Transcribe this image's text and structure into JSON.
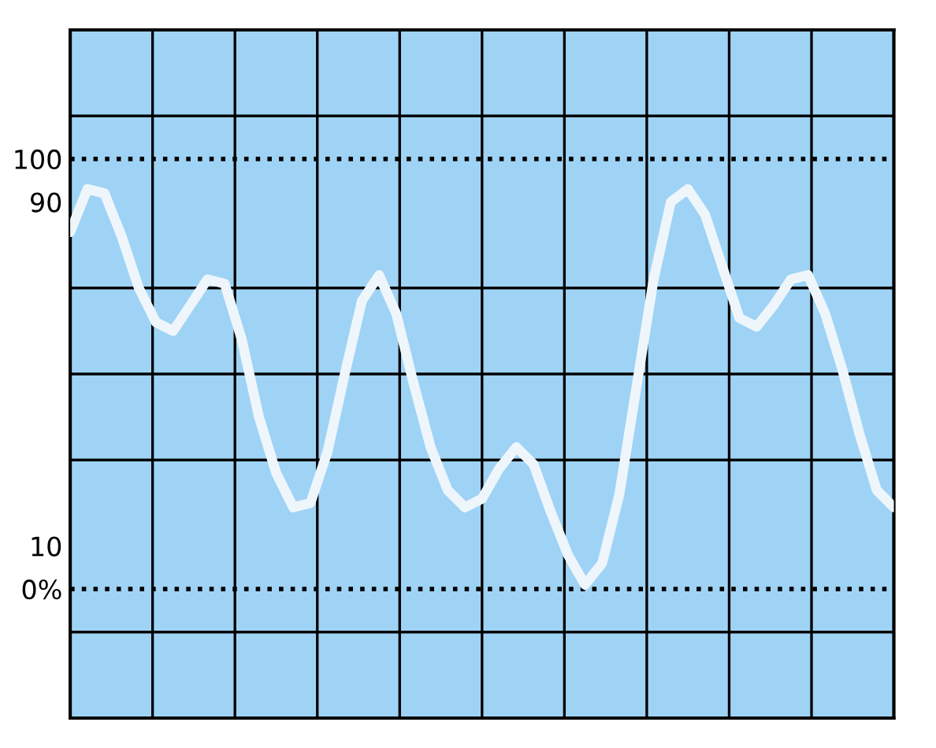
{
  "chart_data": {
    "type": "line",
    "categories": [
      null,
      null,
      null,
      null,
      null,
      null,
      null,
      null,
      null,
      null,
      null,
      null,
      null,
      null,
      null,
      null,
      null,
      null,
      null,
      null,
      null,
      null,
      null,
      null,
      null,
      null,
      null,
      null,
      null,
      null,
      null,
      null,
      null,
      null,
      null,
      null,
      null,
      null,
      null,
      null,
      null,
      null,
      null,
      null,
      null,
      null,
      null,
      null,
      null
    ],
    "series": [
      {
        "color": "#eef6fc",
        "values": [
          83,
          93,
          92,
          82,
          70,
          62,
          60,
          66,
          72,
          71,
          58,
          40,
          27,
          19,
          20,
          32,
          50,
          67,
          73,
          64,
          48,
          33,
          23,
          19,
          21,
          28,
          33,
          29,
          18,
          8,
          1,
          6,
          22,
          47,
          72,
          90,
          93,
          87,
          75,
          63,
          61,
          66,
          72,
          73,
          64,
          51,
          36,
          23,
          19
        ]
      }
    ],
    "ylim": [
      -30,
      130
    ],
    "yticks": [
      {
        "value": 0,
        "label": "0%"
      },
      10,
      90,
      100
    ],
    "grid": true,
    "tick_labels": "y",
    "marker": "none",
    "line_style": "solid",
    "ref_lines": [
      {
        "axis": "y",
        "value": 100,
        "color": "#000000",
        "line_style": "dotted"
      },
      {
        "axis": "y",
        "value": 0,
        "color": "#000000",
        "line_style": "dotted"
      }
    ]
  }
}
